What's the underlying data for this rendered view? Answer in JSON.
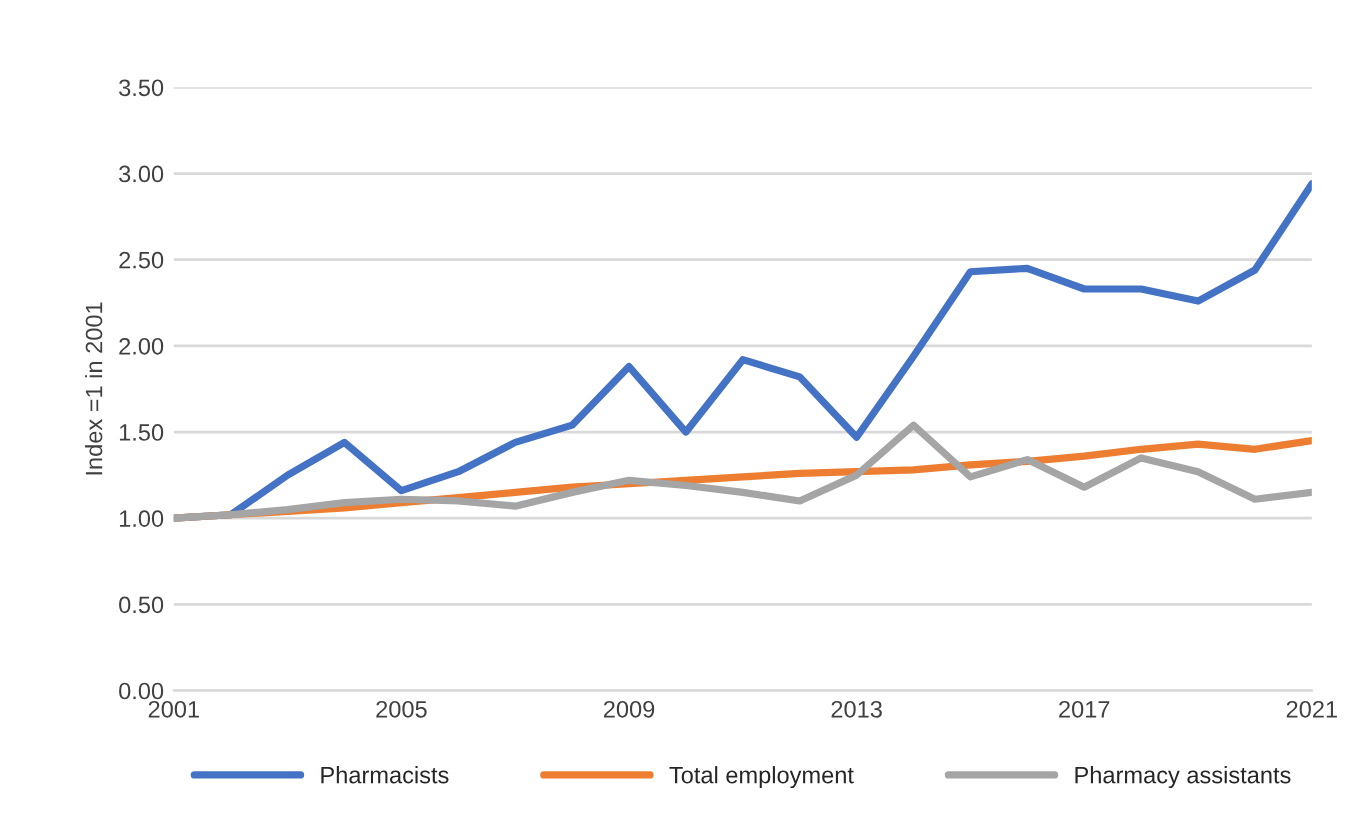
{
  "chart_data": {
    "type": "line",
    "ylabel": "Index =1 in 2001",
    "x": [
      2001,
      2002,
      2003,
      2004,
      2005,
      2006,
      2007,
      2008,
      2009,
      2010,
      2011,
      2012,
      2013,
      2014,
      2015,
      2016,
      2017,
      2018,
      2019,
      2020,
      2021
    ],
    "series": [
      {
        "name": "Pharmacists",
        "color": "#4472c4",
        "values": [
          1.0,
          1.02,
          1.25,
          1.44,
          1.16,
          1.27,
          1.44,
          1.54,
          1.88,
          1.5,
          1.92,
          1.82,
          1.47,
          1.94,
          2.43,
          2.45,
          2.33,
          2.33,
          2.26,
          2.44,
          2.94
        ]
      },
      {
        "name": "Total employment",
        "color": "#ed7d31",
        "values": [
          1.0,
          1.02,
          1.04,
          1.06,
          1.09,
          1.12,
          1.15,
          1.18,
          1.2,
          1.22,
          1.24,
          1.26,
          1.27,
          1.28,
          1.31,
          1.33,
          1.36,
          1.4,
          1.43,
          1.4,
          1.45
        ]
      },
      {
        "name": "Pharmacy assistants",
        "color": "#a5a5a5",
        "values": [
          1.0,
          1.02,
          1.05,
          1.09,
          1.11,
          1.1,
          1.07,
          1.15,
          1.22,
          1.19,
          1.15,
          1.1,
          1.25,
          1.54,
          1.24,
          1.34,
          1.18,
          1.35,
          1.27,
          1.11,
          1.15
        ]
      }
    ],
    "xlim": [
      2001,
      2021
    ],
    "xticks": [
      2001,
      2005,
      2009,
      2013,
      2017,
      2021
    ],
    "ylim": [
      0,
      3.5
    ],
    "yticks": [
      {
        "value": 0,
        "label": "0.00"
      },
      {
        "value": 0.5,
        "label": "0.50"
      },
      {
        "value": 1,
        "label": "1.00"
      },
      {
        "value": 1.5,
        "label": "1.50"
      },
      {
        "value": 2,
        "label": "2.00"
      },
      {
        "value": 2.5,
        "label": "2.50"
      },
      {
        "value": 3,
        "label": "3.00"
      },
      {
        "value": 3.5,
        "label": "3.50"
      }
    ],
    "grid": "y",
    "legend": "bottom",
    "marker": "none",
    "line_style": "solid"
  }
}
